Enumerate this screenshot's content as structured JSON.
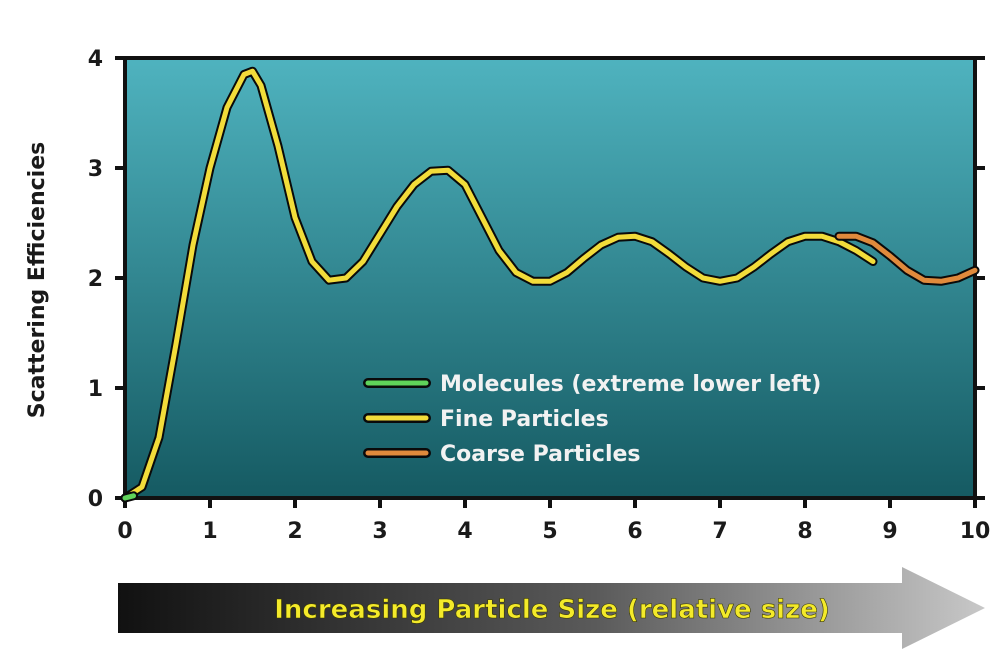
{
  "chart_data": {
    "type": "line",
    "title": "",
    "xlabel": "Increasing Particle Size (relative size)",
    "ylabel": "Scattering Efficiencies",
    "xlim": [
      0,
      10
    ],
    "ylim": [
      0,
      4
    ],
    "x_ticks": [
      "0",
      "1",
      "2",
      "3",
      "4",
      "5",
      "6",
      "7",
      "8",
      "9",
      "10"
    ],
    "y_ticks": [
      "0",
      "1",
      "2",
      "3",
      "4"
    ],
    "grid": false,
    "legend_position": "bottom-right",
    "colors": {
      "plot_background_top": "#4fb3bf",
      "plot_background_bottom": "#155a62",
      "molecules": "#5fd35a",
      "fine": "#f2dc3a",
      "coarse": "#e08a3c",
      "arrow_text": "#f4ea2a"
    },
    "series": [
      {
        "name": "Molecules (extreme lower left)",
        "x": [
          0,
          0.05,
          0.1
        ],
        "y": [
          0,
          0.01,
          0.02
        ]
      },
      {
        "name": "Fine Particles",
        "x": [
          0,
          0.2,
          0.4,
          0.6,
          0.8,
          1.0,
          1.2,
          1.4,
          1.5,
          1.6,
          1.8,
          2.0,
          2.2,
          2.4,
          2.6,
          2.8,
          3.0,
          3.2,
          3.4,
          3.6,
          3.8,
          4.0,
          4.2,
          4.4,
          4.6,
          4.8,
          5.0,
          5.2,
          5.4,
          5.6,
          5.8,
          6.0,
          6.2,
          6.4,
          6.6,
          6.8,
          7.0,
          7.2,
          7.4,
          7.6,
          7.8,
          8.0,
          8.2,
          8.4,
          8.6,
          8.8
        ],
        "y": [
          0,
          0.1,
          0.55,
          1.4,
          2.3,
          3.0,
          3.55,
          3.85,
          3.88,
          3.75,
          3.2,
          2.55,
          2.15,
          1.98,
          2.0,
          2.15,
          2.4,
          2.65,
          2.85,
          2.97,
          2.98,
          2.85,
          2.55,
          2.25,
          2.05,
          1.97,
          1.97,
          2.05,
          2.18,
          2.3,
          2.37,
          2.38,
          2.33,
          2.22,
          2.1,
          2.0,
          1.97,
          2.0,
          2.1,
          2.22,
          2.33,
          2.38,
          2.38,
          2.33,
          2.25,
          2.15
        ]
      },
      {
        "name": "Coarse Particles",
        "x": [
          8.4,
          8.6,
          8.8,
          9.0,
          9.2,
          9.4,
          9.6,
          9.8,
          10.0
        ],
        "y": [
          2.38,
          2.38,
          2.32,
          2.2,
          2.07,
          1.98,
          1.97,
          2.0,
          2.07
        ]
      }
    ]
  }
}
